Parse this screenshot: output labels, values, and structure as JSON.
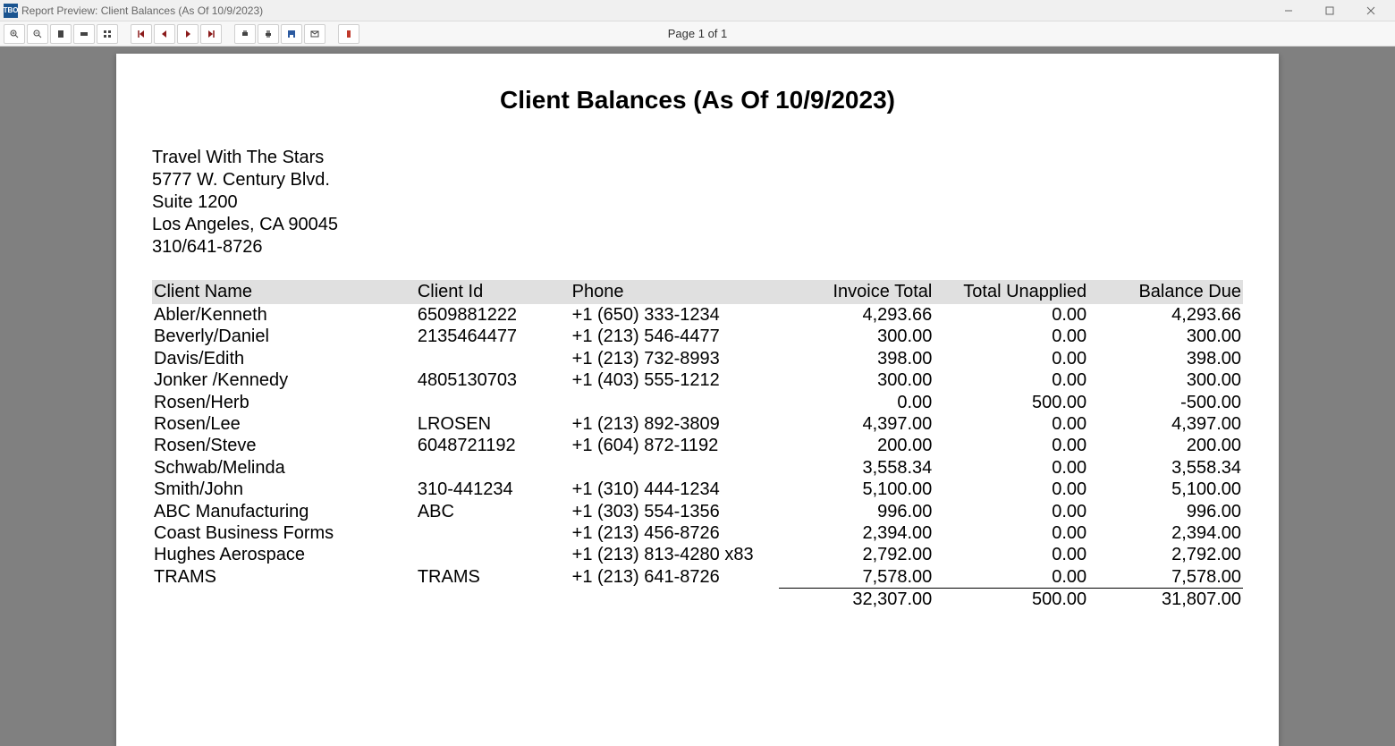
{
  "window": {
    "app_icon_text": "TBO",
    "title": "Report Preview: Client Balances (As Of 10/9/2023)"
  },
  "toolbar": {
    "page_indicator": "Page 1 of 1"
  },
  "report": {
    "title": "Client Balances (As Of 10/9/2023)",
    "company": {
      "name": "Travel With The Stars",
      "address1": "5777 W. Century Blvd.",
      "address2": "Suite 1200",
      "city_state_zip": "Los Angeles, CA 90045",
      "phone": "310/641-8726"
    },
    "columns": {
      "client_name": "Client Name",
      "client_id": "Client Id",
      "phone": "Phone",
      "invoice_total": "Invoice Total",
      "total_unapplied": "Total Unapplied",
      "balance_due": "Balance Due"
    },
    "rows": [
      {
        "name": "Abler/Kenneth",
        "id": "6509881222",
        "phone": "+1 (650) 333-1234",
        "inv": "4,293.66",
        "unapp": "0.00",
        "bal": "4,293.66"
      },
      {
        "name": "Beverly/Daniel",
        "id": "2135464477",
        "phone": "+1 (213) 546-4477",
        "inv": "300.00",
        "unapp": "0.00",
        "bal": "300.00"
      },
      {
        "name": "Davis/Edith",
        "id": "",
        "phone": "+1 (213) 732-8993",
        "inv": "398.00",
        "unapp": "0.00",
        "bal": "398.00"
      },
      {
        "name": "Jonker /Kennedy",
        "id": "4805130703",
        "phone": "+1 (403) 555-1212",
        "inv": "300.00",
        "unapp": "0.00",
        "bal": "300.00"
      },
      {
        "name": "Rosen/Herb",
        "id": "",
        "phone": "",
        "inv": "0.00",
        "unapp": "500.00",
        "bal": "-500.00"
      },
      {
        "name": "Rosen/Lee",
        "id": "LROSEN",
        "phone": "+1 (213) 892-3809",
        "inv": "4,397.00",
        "unapp": "0.00",
        "bal": "4,397.00"
      },
      {
        "name": "Rosen/Steve",
        "id": "6048721192",
        "phone": "+1 (604) 872-1192",
        "inv": "200.00",
        "unapp": "0.00",
        "bal": "200.00"
      },
      {
        "name": "Schwab/Melinda",
        "id": "",
        "phone": "",
        "inv": "3,558.34",
        "unapp": "0.00",
        "bal": "3,558.34"
      },
      {
        "name": "Smith/John",
        "id": "310-441234",
        "phone": "+1 (310) 444-1234",
        "inv": "5,100.00",
        "unapp": "0.00",
        "bal": "5,100.00"
      },
      {
        "name": "ABC  Manufacturing",
        "id": "ABC",
        "phone": "+1 (303) 554-1356",
        "inv": "996.00",
        "unapp": "0.00",
        "bal": "996.00"
      },
      {
        "name": "Coast Business Forms",
        "id": "",
        "phone": "+1 (213) 456-8726",
        "inv": "2,394.00",
        "unapp": "0.00",
        "bal": "2,394.00"
      },
      {
        "name": "Hughes Aerospace",
        "id": "",
        "phone": "+1 (213) 813-4280 x83",
        "inv": "2,792.00",
        "unapp": "0.00",
        "bal": "2,792.00"
      },
      {
        "name": "TRAMS",
        "id": "TRAMS",
        "phone": "+1 (213) 641-8726",
        "inv": "7,578.00",
        "unapp": "0.00",
        "bal": "7,578.00"
      }
    ],
    "totals": {
      "invoice_total": "32,307.00",
      "total_unapplied": "500.00",
      "balance_due": "31,807.00"
    }
  },
  "colors": {
    "titlebar_bg": "#f0f0f0",
    "toolbar_bg": "#f7f7f7",
    "viewer_bg": "#808080",
    "page_bg": "#ffffff",
    "header_row_bg": "#e0e0e0",
    "text": "#000000",
    "close_red": "#c0392b"
  }
}
